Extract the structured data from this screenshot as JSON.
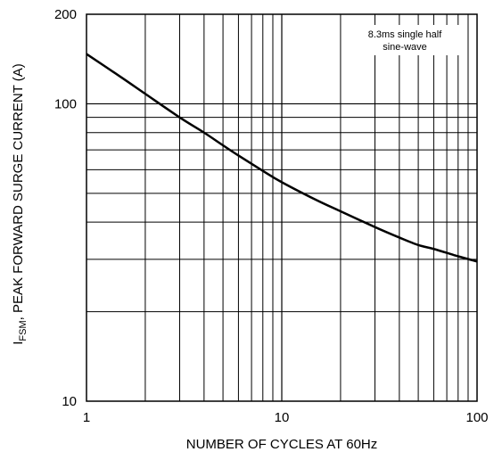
{
  "chart_data": {
    "type": "line",
    "x_scale": "log",
    "y_scale": "log",
    "xlim": [
      1,
      100
    ],
    "ylim": [
      10,
      200
    ],
    "grid": true,
    "x_ticks": [
      "1",
      "10",
      "100"
    ],
    "y_ticks": [
      "10",
      "100",
      "200"
    ],
    "xlabel": "NUMBER OF CYCLES AT 60Hz",
    "ylabel_main": "I",
    "ylabel_sub": "FSM",
    "ylabel_rest": ", PEAK FORWARD SURGE CURRENT (A)",
    "annotation_line1": "8.3ms single half",
    "annotation_line2": "sine-wave",
    "series": [
      {
        "x": [
          1,
          1.5,
          2,
          3,
          4,
          5,
          6,
          8,
          10,
          15,
          20,
          30,
          40,
          50,
          60,
          80,
          100
        ],
        "y": [
          147,
          123,
          108,
          90,
          80,
          72.5,
          67,
          59.5,
          54.5,
          47.5,
          43.5,
          38.5,
          35.5,
          33.5,
          32.5,
          30.7,
          29.5
        ]
      }
    ]
  }
}
